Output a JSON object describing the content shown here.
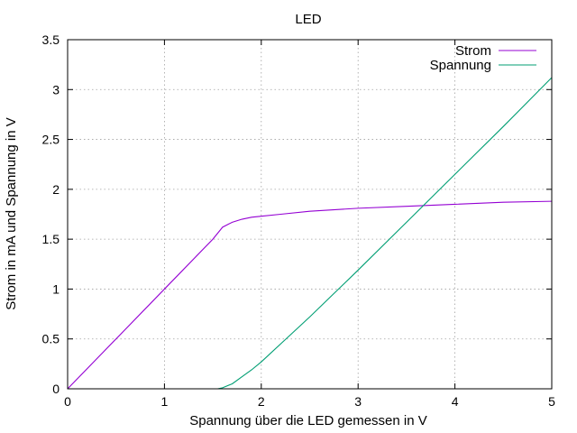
{
  "chart_data": {
    "type": "line",
    "title": "LED",
    "xlabel": "Spannung über die LED gemessen in V",
    "ylabel": "Strom in mA und Spannung in V",
    "xlim": [
      0,
      5
    ],
    "ylim": [
      0,
      3.5
    ],
    "x_ticks": [
      0,
      1,
      2,
      3,
      4,
      5
    ],
    "x_tick_labels": [
      "0",
      "1",
      "2",
      "3",
      "4",
      "5"
    ],
    "y_ticks": [
      0,
      0.5,
      1,
      1.5,
      2,
      2.5,
      3,
      3.5
    ],
    "y_tick_labels": [
      "0",
      "0.5",
      "1",
      "1.5",
      "2",
      "2.5",
      "3",
      "3.5"
    ],
    "grid": true,
    "legend_position": "top-right",
    "series": [
      {
        "name": "Strom",
        "color": "#9400d3",
        "x": [
          0,
          0.5,
          1.0,
          1.5,
          1.55,
          1.6,
          1.7,
          1.8,
          1.9,
          2.0,
          2.2,
          2.5,
          3.0,
          3.5,
          4.0,
          4.5,
          5.0
        ],
        "y": [
          0,
          0.5,
          1.0,
          1.5,
          1.56,
          1.62,
          1.67,
          1.7,
          1.72,
          1.73,
          1.75,
          1.78,
          1.81,
          1.83,
          1.85,
          1.87,
          1.88
        ]
      },
      {
        "name": "Spannung",
        "color": "#009e73",
        "x": [
          1.55,
          1.6,
          1.7,
          1.8,
          1.9,
          2.0,
          2.2,
          2.5,
          3.0,
          3.5,
          4.0,
          4.5,
          5.0
        ],
        "y": [
          0,
          0.01,
          0.05,
          0.12,
          0.19,
          0.27,
          0.45,
          0.72,
          1.19,
          1.67,
          2.15,
          2.63,
          3.12
        ]
      }
    ]
  }
}
